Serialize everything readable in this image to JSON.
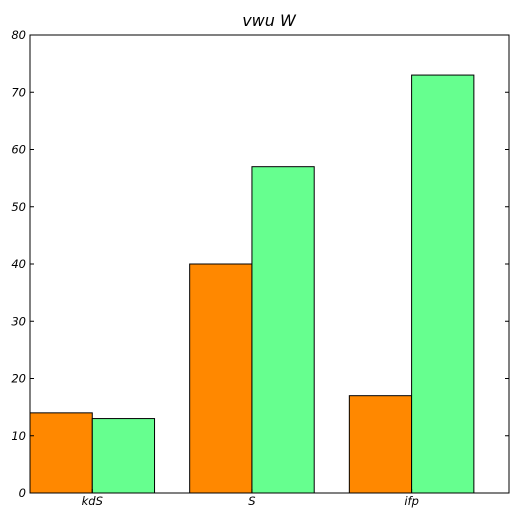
{
  "chart_data": {
    "type": "bar",
    "title": "vwu W",
    "xlabel": "",
    "ylabel": "",
    "categories": [
      "kdS",
      "S",
      "ifp"
    ],
    "series": [
      {
        "values": [
          14,
          40,
          17
        ],
        "color": "#ff8800"
      },
      {
        "values": [
          13,
          57,
          73
        ],
        "color": "#66ff8f"
      }
    ],
    "ylim": [
      0,
      80
    ],
    "yticks": [
      0,
      10,
      20,
      30,
      40,
      50,
      60,
      70,
      80
    ],
    "grid": false,
    "legend": "none"
  }
}
